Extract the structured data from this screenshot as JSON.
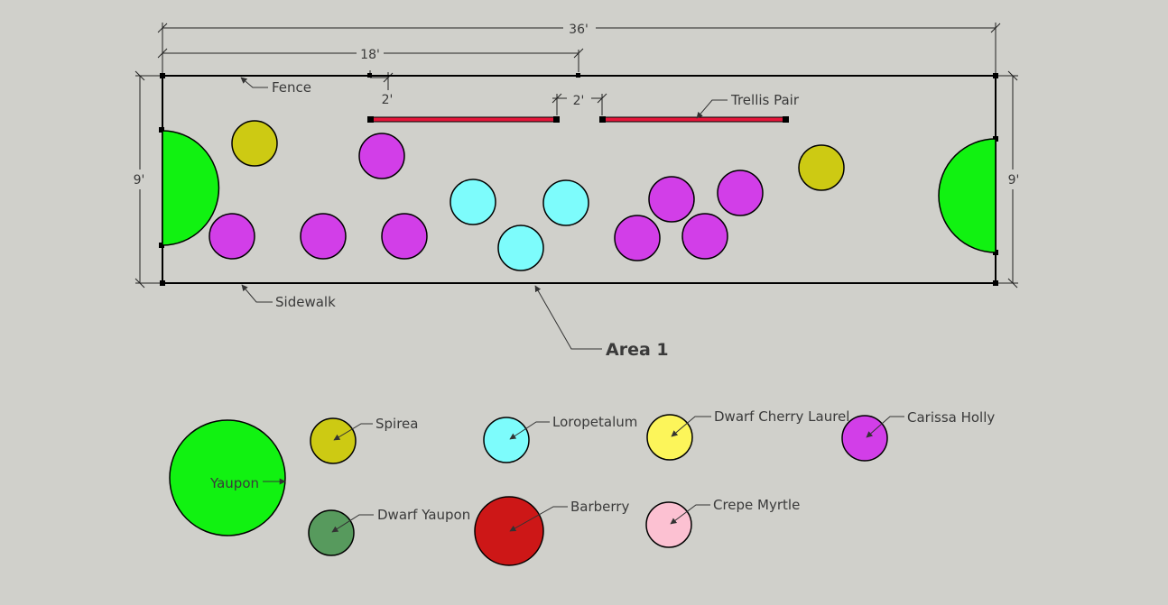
{
  "dimensions": {
    "total_width": "36'",
    "half_width": "18'",
    "depth_left": "9'",
    "depth_right": "9'",
    "trellis_offset": "2'",
    "trellis_gap": "2'"
  },
  "labels": {
    "fence": "Fence",
    "trellis": "Trellis Pair",
    "sidewalk": "Sidewalk",
    "area": "Area 1"
  },
  "legend": [
    {
      "name": "Yaupon",
      "color": "#11f211"
    },
    {
      "name": "Spirea",
      "color": "#cdca13"
    },
    {
      "name": "Loropetalum",
      "color": "#7dfcfc"
    },
    {
      "name": "Dwarf Cherry Laurel",
      "color": "#fcf55a"
    },
    {
      "name": "Carissa Holly",
      "color": "#d23ee8"
    },
    {
      "name": "Dwarf Yaupon",
      "color": "#579a5d"
    },
    {
      "name": "Barberry",
      "color": "#cd1717"
    },
    {
      "name": "Crepe Myrtle",
      "color": "#fcc1d2"
    }
  ],
  "colors": {
    "line": "#000000",
    "trellis": "#e6163a",
    "background": "#d0d0cb"
  }
}
